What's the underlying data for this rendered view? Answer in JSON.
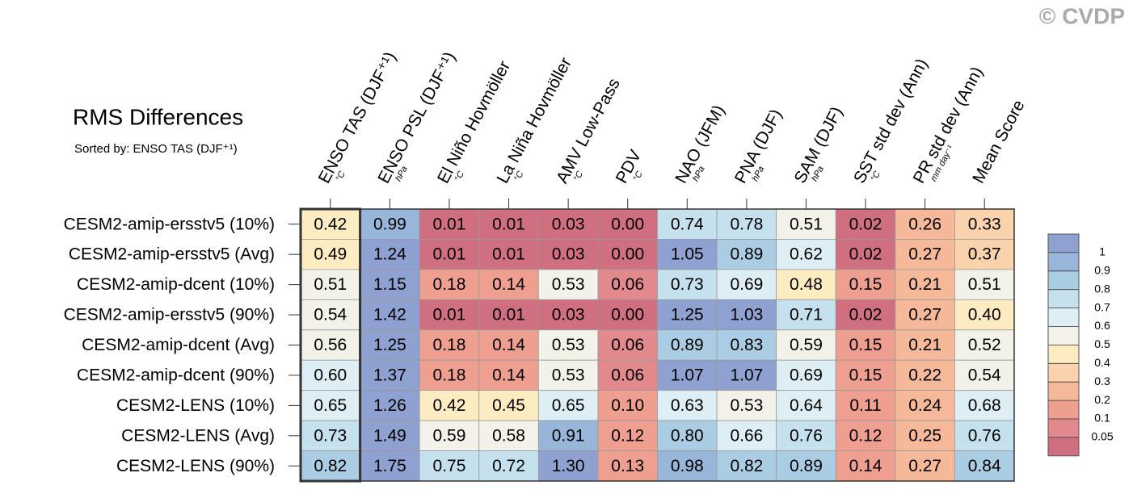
{
  "chart_data": {
    "type": "heatmap",
    "title": "RMS Differences",
    "subtitle": "Sorted by: ENSO TAS (DJF⁺¹)",
    "watermark": "© CVDP",
    "columns": [
      "ENSO TAS (DJF⁺¹)",
      "ENSO PSL (DJF⁺¹)",
      "El Niño Hovmöller",
      "La Niña Hovmöller",
      "AMV Low-Pass",
      "PDV",
      "NAO (JFM)",
      "PNA (DJF)",
      "SAM (DJF)",
      "SST std dev (Ann)",
      "PR std dev (Ann)",
      "Mean Score"
    ],
    "units": [
      "°C",
      "hPa",
      "°C",
      "°C",
      "°C",
      "°C",
      "hPa",
      "hPa",
      "hPa",
      "°C",
      "mm day⁻¹",
      null
    ],
    "rows": [
      "CESM2-amip-ersstv5 (10%)",
      "CESM2-amip-ersstv5 (Avg)",
      "CESM2-amip-dcent (10%)",
      "CESM2-amip-ersstv5 (90%)",
      "CESM2-amip-dcent (Avg)",
      "CESM2-amip-dcent (90%)",
      "CESM2-LENS (10%)",
      "CESM2-LENS (Avg)",
      "CESM2-LENS (90%)"
    ],
    "values": [
      [
        0.42,
        0.99,
        0.01,
        0.01,
        0.03,
        0.0,
        0.74,
        0.78,
        0.51,
        0.02,
        0.26,
        0.33
      ],
      [
        0.49,
        1.24,
        0.01,
        0.01,
        0.03,
        0.0,
        1.05,
        0.89,
        0.62,
        0.02,
        0.27,
        0.37
      ],
      [
        0.51,
        1.15,
        0.18,
        0.14,
        0.53,
        0.06,
        0.73,
        0.69,
        0.48,
        0.15,
        0.21,
        0.51
      ],
      [
        0.54,
        1.42,
        0.01,
        0.01,
        0.03,
        0.0,
        1.25,
        1.03,
        0.71,
        0.02,
        0.27,
        0.4
      ],
      [
        0.56,
        1.25,
        0.18,
        0.14,
        0.53,
        0.06,
        0.89,
        0.83,
        0.59,
        0.15,
        0.21,
        0.52
      ],
      [
        0.6,
        1.37,
        0.18,
        0.14,
        0.53,
        0.06,
        1.07,
        1.07,
        0.69,
        0.15,
        0.22,
        0.54
      ],
      [
        0.65,
        1.26,
        0.42,
        0.45,
        0.65,
        0.1,
        0.63,
        0.53,
        0.64,
        0.11,
        0.24,
        0.68
      ],
      [
        0.73,
        1.49,
        0.59,
        0.58,
        0.91,
        0.12,
        0.8,
        0.66,
        0.76,
        0.12,
        0.25,
        0.76
      ],
      [
        0.82,
        1.75,
        0.75,
        0.72,
        1.3,
        0.13,
        0.98,
        0.82,
        0.89,
        0.14,
        0.27,
        0.84
      ]
    ],
    "value_labels": [
      [
        "0.42",
        "0.99",
        "0.01",
        "0.01",
        "0.03",
        "0.00",
        "0.74",
        "0.78",
        "0.51",
        "0.02",
        "0.26",
        "0.33"
      ],
      [
        "0.49",
        "1.24",
        "0.01",
        "0.01",
        "0.03",
        "0.00",
        "1.05",
        "0.89",
        "0.62",
        "0.02",
        "0.27",
        "0.37"
      ],
      [
        "0.51",
        "1.15",
        "0.18",
        "0.14",
        "0.53",
        "0.06",
        "0.73",
        "0.69",
        "0.48",
        "0.15",
        "0.21",
        "0.51"
      ],
      [
        "0.54",
        "1.42",
        "0.01",
        "0.01",
        "0.03",
        "0.00",
        "1.25",
        "1.03",
        "0.71",
        "0.02",
        "0.27",
        "0.40"
      ],
      [
        "0.56",
        "1.25",
        "0.18",
        "0.14",
        "0.53",
        "0.06",
        "0.89",
        "0.83",
        "0.59",
        "0.15",
        "0.21",
        "0.52"
      ],
      [
        "0.60",
        "1.37",
        "0.18",
        "0.14",
        "0.53",
        "0.06",
        "1.07",
        "1.07",
        "0.69",
        "0.15",
        "0.22",
        "0.54"
      ],
      [
        "0.65",
        "1.26",
        "0.42",
        "0.45",
        "0.65",
        "0.10",
        "0.63",
        "0.53",
        "0.64",
        "0.11",
        "0.24",
        "0.68"
      ],
      [
        "0.73",
        "1.49",
        "0.59",
        "0.58",
        "0.91",
        "0.12",
        "0.80",
        "0.66",
        "0.76",
        "0.12",
        "0.25",
        "0.76"
      ],
      [
        "0.82",
        "1.75",
        "0.75",
        "0.72",
        "1.30",
        "0.13",
        "0.98",
        "0.82",
        "0.89",
        "0.14",
        "0.27",
        "0.84"
      ]
    ],
    "levels": [
      0.05,
      0.1,
      0.2,
      0.3,
      0.4,
      0.5,
      0.6,
      0.7,
      0.8,
      0.9,
      1
    ],
    "colors": [
      "#cf6f80",
      "#e1898d",
      "#ee9f8f",
      "#f5b899",
      "#fad2ac",
      "#fdebc2",
      "#f3f2e8",
      "#ddeef4",
      "#c5e1ed",
      "#abcde3",
      "#98b6d9",
      "#8ea1d0"
    ],
    "highlight_column": 0
  }
}
